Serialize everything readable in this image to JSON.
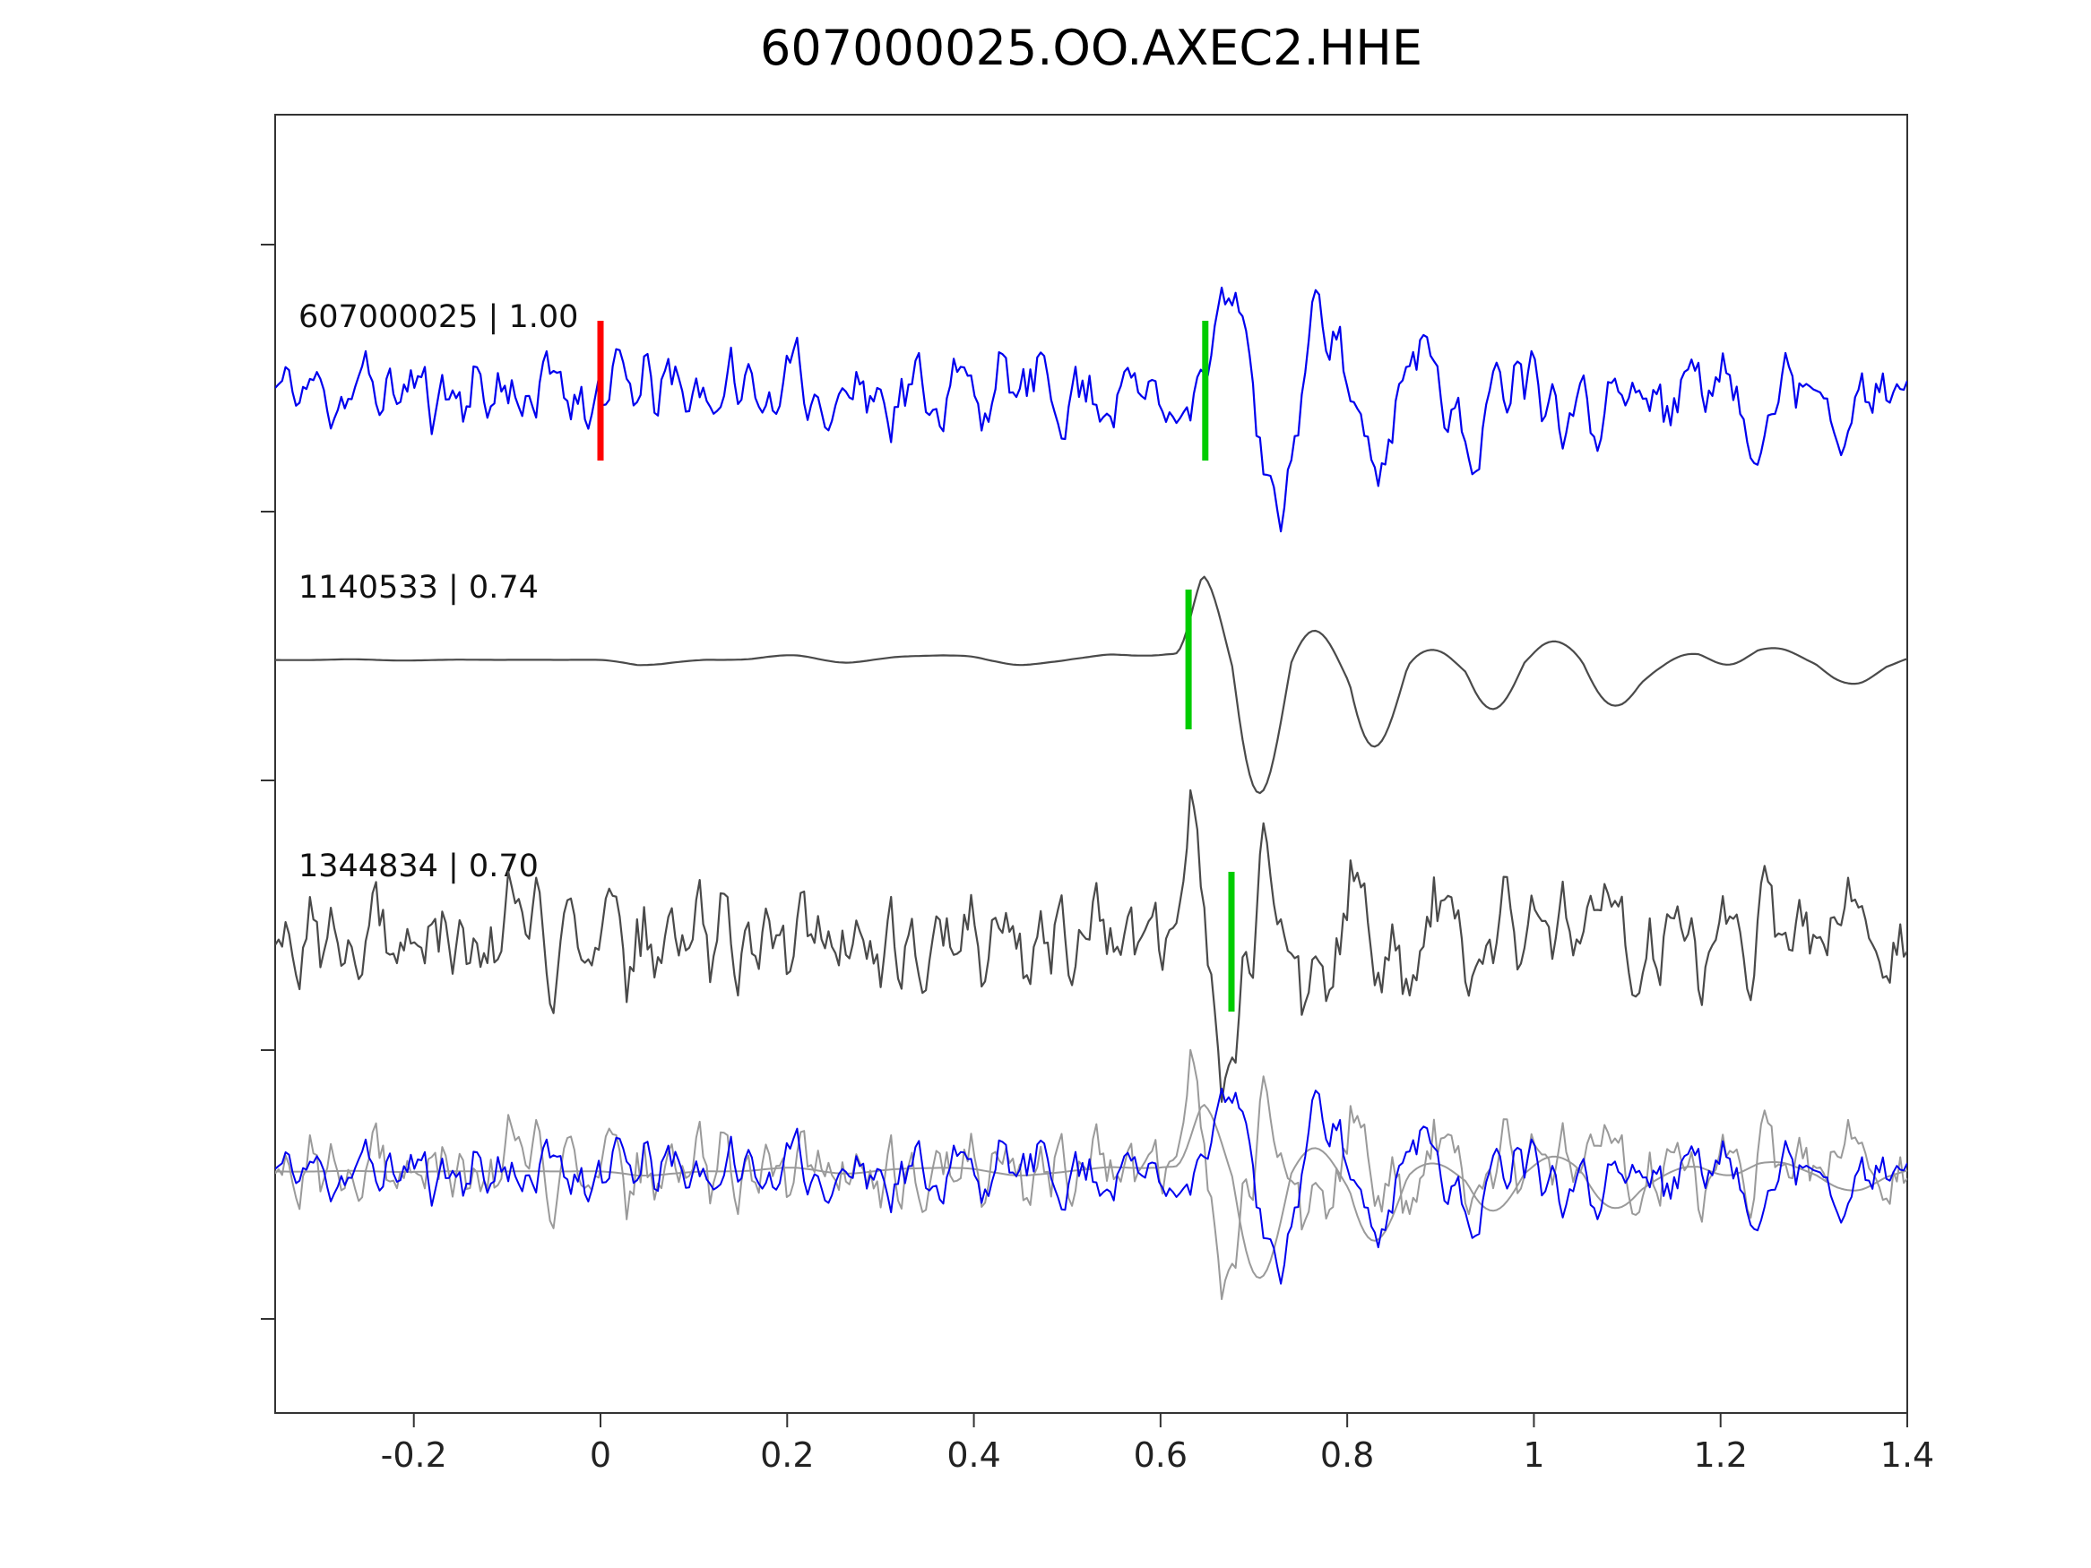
{
  "title": "607000025.OO.AXEC2.HHE",
  "chart_data": {
    "type": "line",
    "title": "607000025.OO.AXEC2.HHE",
    "xlabel": "",
    "ylabel": "",
    "xlim": [
      -0.349,
      1.4
    ],
    "x_ticks": [
      -0.2,
      0,
      0.2,
      0.4,
      0.6,
      0.8,
      1,
      1.2,
      1.4
    ],
    "x_tick_labels": [
      "-0.2",
      "0",
      "0.2",
      "0.4",
      "0.6",
      "0.8",
      "1",
      "1.2",
      "1.4"
    ],
    "grid": false,
    "legend": "inline-trace-labels",
    "colors": {
      "template_trace": "#0000ee",
      "match_trace": "#4a4a4a",
      "overlay_gray": "#9a9a9a",
      "origin_marker": "#ff0000",
      "pick_marker": "#00cc00",
      "axes": "#333333"
    },
    "series": [
      {
        "id": "607000025",
        "label": "607000025 | 1.00",
        "correlation": 1.0,
        "color": "#0000ee",
        "row": 0,
        "markers": [
          {
            "type": "origin",
            "x": 0.0,
            "color": "#ff0000"
          },
          {
            "type": "pick",
            "x": 0.648,
            "color": "#00cc00"
          }
        ],
        "synth": {
          "seed": 11,
          "noise_amp": 68,
          "smooth_window": 3,
          "smooth_passes": 1,
          "envelope": [
            [
              -0.35,
              1.0
            ],
            [
              1.4,
              1.0
            ]
          ],
          "events": [
            {
              "t0": 0.645,
              "amp": 155,
              "freq": 9.5,
              "decay": 3.5,
              "rise": 0.03,
              "asym": 1.2
            },
            {
              "t0": 1.0,
              "amp": 70,
              "freq": 8.0,
              "decay": 6.0,
              "rise": 0.04,
              "asym": 1.1
            }
          ]
        }
      },
      {
        "id": "1140533",
        "label": "1140533 | 0.74",
        "correlation": 0.74,
        "color": "#4a4a4a",
        "row": 1,
        "markers": [
          {
            "type": "pick",
            "x": 0.63,
            "color": "#00cc00"
          }
        ],
        "synth": {
          "seed": 47,
          "noise_amp": 30,
          "smooth_window": 13,
          "smooth_passes": 3,
          "envelope": [
            [
              -0.35,
              0.05
            ],
            [
              0.0,
              0.05
            ],
            [
              0.04,
              0.28
            ],
            [
              0.3,
              0.3
            ],
            [
              0.36,
              0.5
            ],
            [
              0.6,
              0.55
            ],
            [
              0.78,
              1.0
            ],
            [
              1.4,
              0.85
            ]
          ],
          "events": [
            {
              "t0": 0.615,
              "amp": 110,
              "freq": 8.0,
              "decay": 4.5,
              "rise": 0.03,
              "asym": 2.1
            }
          ]
        }
      },
      {
        "id": "1344834",
        "label": "1344834 | 0.70",
        "correlation": 0.7,
        "color": "#4a4a4a",
        "row": 2,
        "markers": [
          {
            "type": "pick",
            "x": 0.676,
            "color": "#00cc00"
          }
        ],
        "synth": {
          "seed": 83,
          "noise_amp": 85,
          "smooth_window": 3,
          "smooth_passes": 1,
          "envelope": [
            [
              -0.35,
              1.0
            ],
            [
              1.4,
              1.0
            ]
          ],
          "events": [
            {
              "t0": 0.607,
              "amp": 160,
              "freq": 11.0,
              "decay": 5.0,
              "rise": 0.025,
              "asym": 1.0
            }
          ]
        }
      }
    ],
    "overlay_row": {
      "row": 3,
      "scale": 0.8,
      "series_ids": [
        "1140533",
        "1344834",
        "607000025"
      ],
      "gray_color": "#9a9a9a"
    }
  }
}
